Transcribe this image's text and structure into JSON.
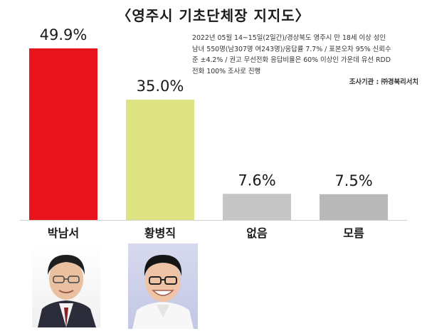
{
  "chart_data": {
    "type": "bar",
    "title": "〈영주시 기초단체장 지지도〉",
    "categories": [
      "박남서",
      "황병직",
      "없음",
      "모름"
    ],
    "values": [
      49.9,
      35.0,
      7.6,
      7.5
    ],
    "value_labels": [
      "49.9%",
      "35.0%",
      "7.6%",
      "7.5%"
    ],
    "colors": [
      "#e8141c",
      "#dde383",
      "#c6c6c6",
      "#b9b9b9"
    ],
    "ylim": [
      0,
      49.9
    ],
    "grid": false,
    "legend": "none",
    "notes": [
      "2022년 05월 14~15일(2일간)/경상북도 영주시 만 18세 이상 성인",
      "남녀 550명(남307명 여243명)/응답률 7.7% / 표본오차 95% 신뢰수",
      "준 ±4.2% / 권고 무선전화 응답비율은 60% 이상인 가운데 유선 RDD",
      "전화 100% 조사로 진행"
    ],
    "agency": "조사기관 : ㈜경북리서치"
  },
  "photos": [
    {
      "person": "박남서",
      "icon": "candidate-portrait"
    },
    {
      "person": "황병직",
      "icon": "candidate-portrait"
    }
  ]
}
